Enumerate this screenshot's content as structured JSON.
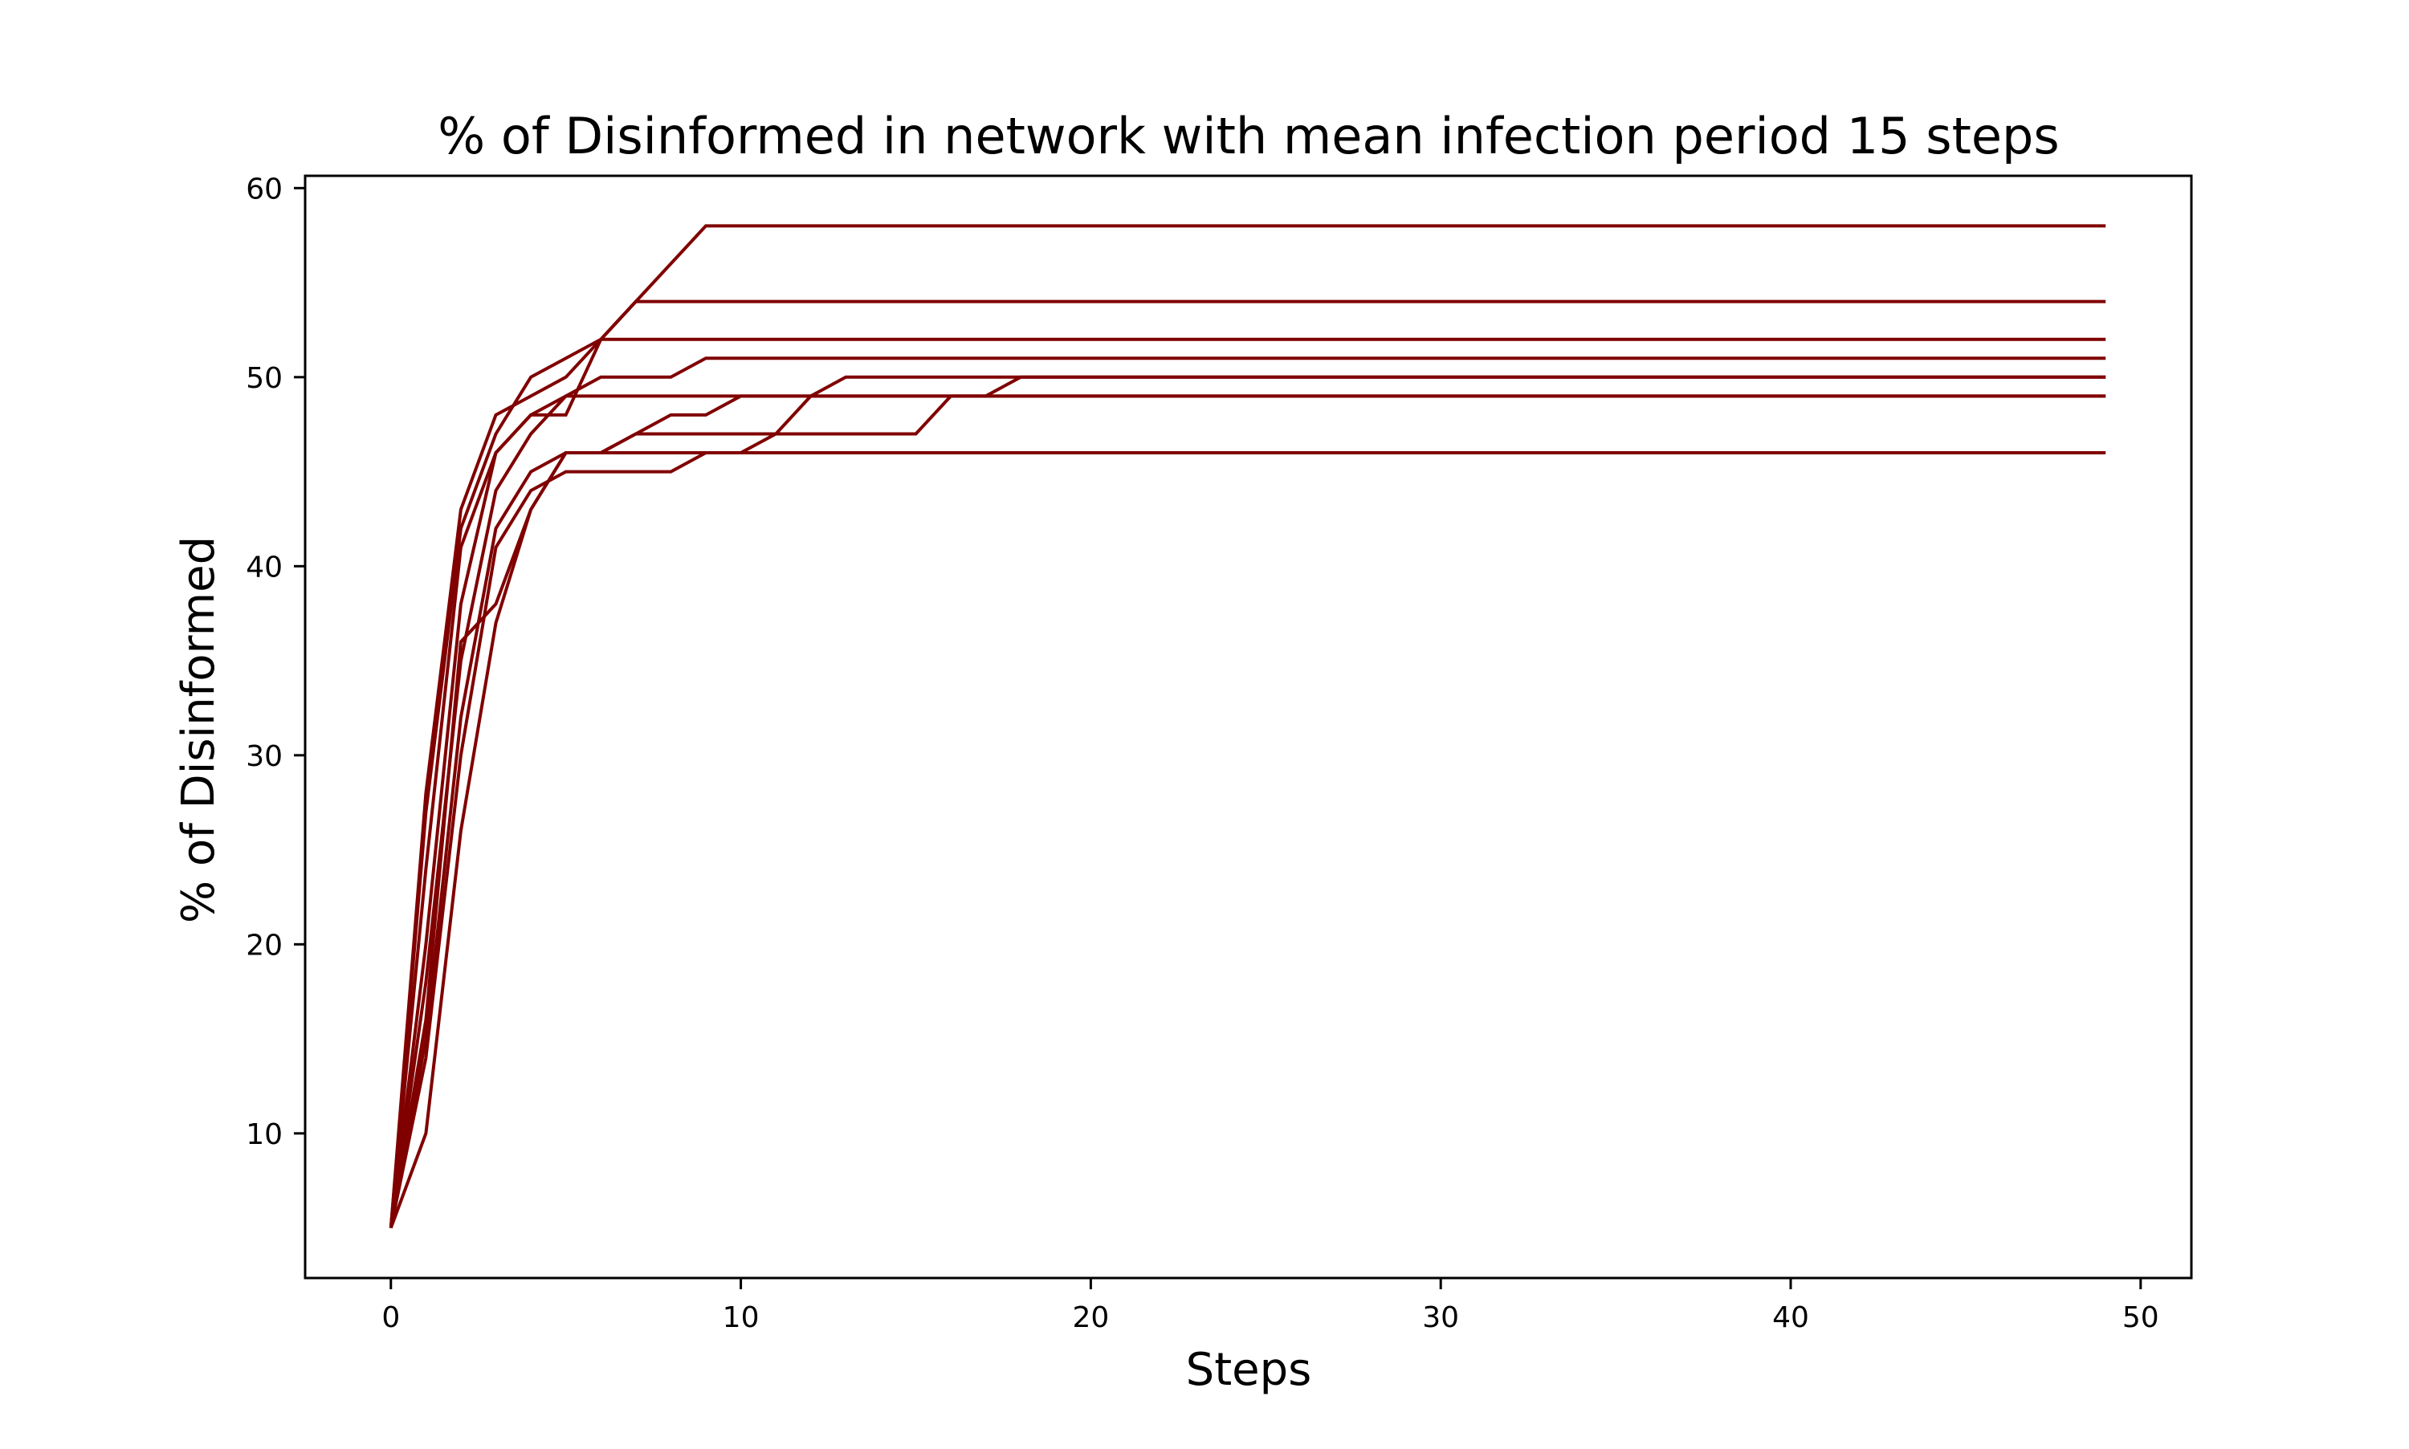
{
  "chart_data": {
    "type": "line",
    "title": "% of Disinformed in network with mean infection period 15 steps",
    "xlabel": "Steps",
    "ylabel": "% of Disinformed",
    "xlim": [
      -2.45,
      51.45
    ],
    "ylim": [
      2.35,
      60.65
    ],
    "xticks": [
      0,
      10,
      20,
      30,
      40,
      50
    ],
    "yticks": [
      10,
      20,
      30,
      40,
      50,
      60
    ],
    "grid": false,
    "legend": "none",
    "color": "#800000",
    "series": [
      {
        "points": [
          [
            0,
            5
          ],
          [
            1,
            27
          ],
          [
            2,
            42
          ],
          [
            3,
            47
          ],
          [
            4,
            50
          ],
          [
            5,
            51
          ],
          [
            6,
            52
          ],
          [
            7,
            54
          ],
          [
            8,
            56
          ],
          [
            9,
            58
          ],
          [
            49,
            58
          ]
        ]
      },
      {
        "points": [
          [
            0,
            5
          ],
          [
            1,
            24
          ],
          [
            2,
            41
          ],
          [
            3,
            46
          ],
          [
            4,
            48
          ],
          [
            5,
            48
          ],
          [
            6,
            52
          ],
          [
            7,
            54
          ],
          [
            49,
            54
          ]
        ]
      },
      {
        "points": [
          [
            0,
            5
          ],
          [
            1,
            28
          ],
          [
            2,
            43
          ],
          [
            3,
            48
          ],
          [
            4,
            49
          ],
          [
            5,
            50
          ],
          [
            6,
            52
          ],
          [
            49,
            52
          ]
        ]
      },
      {
        "points": [
          [
            0,
            5
          ],
          [
            1,
            20
          ],
          [
            2,
            38
          ],
          [
            3,
            46
          ],
          [
            4,
            48
          ],
          [
            5,
            49
          ],
          [
            6,
            50
          ],
          [
            7,
            50
          ],
          [
            8,
            50
          ],
          [
            9,
            51
          ],
          [
            49,
            51
          ]
        ]
      },
      {
        "points": [
          [
            0,
            5
          ],
          [
            1,
            18
          ],
          [
            2,
            35
          ],
          [
            3,
            44
          ],
          [
            4,
            47
          ],
          [
            5,
            49
          ],
          [
            6,
            49
          ],
          [
            12,
            49
          ],
          [
            13,
            50
          ],
          [
            49,
            50
          ]
        ]
      },
      {
        "points": [
          [
            0,
            5
          ],
          [
            1,
            15
          ],
          [
            2,
            32
          ],
          [
            3,
            42
          ],
          [
            4,
            45
          ],
          [
            5,
            46
          ],
          [
            6,
            46
          ],
          [
            7,
            47
          ],
          [
            8,
            48
          ],
          [
            9,
            48
          ],
          [
            10,
            49
          ],
          [
            16,
            49
          ],
          [
            17,
            49
          ],
          [
            18,
            50
          ],
          [
            49,
            50
          ]
        ]
      },
      {
        "points": [
          [
            0,
            5
          ],
          [
            1,
            16
          ],
          [
            2,
            36
          ],
          [
            3,
            38
          ],
          [
            4,
            43
          ],
          [
            5,
            46
          ],
          [
            6,
            46
          ],
          [
            7,
            47
          ],
          [
            11,
            47
          ],
          [
            12,
            49
          ],
          [
            49,
            49
          ]
        ]
      },
      {
        "points": [
          [
            0,
            5
          ],
          [
            1,
            14
          ],
          [
            2,
            30
          ],
          [
            3,
            41
          ],
          [
            4,
            44
          ],
          [
            5,
            45
          ],
          [
            8,
            45
          ],
          [
            9,
            46
          ],
          [
            10,
            46
          ],
          [
            11,
            47
          ],
          [
            15,
            47
          ],
          [
            16,
            49
          ],
          [
            49,
            49
          ]
        ]
      },
      {
        "points": [
          [
            0,
            5
          ],
          [
            1,
            10
          ],
          [
            2,
            26
          ],
          [
            3,
            37
          ],
          [
            4,
            43
          ],
          [
            5,
            46
          ],
          [
            49,
            46
          ]
        ]
      }
    ]
  }
}
